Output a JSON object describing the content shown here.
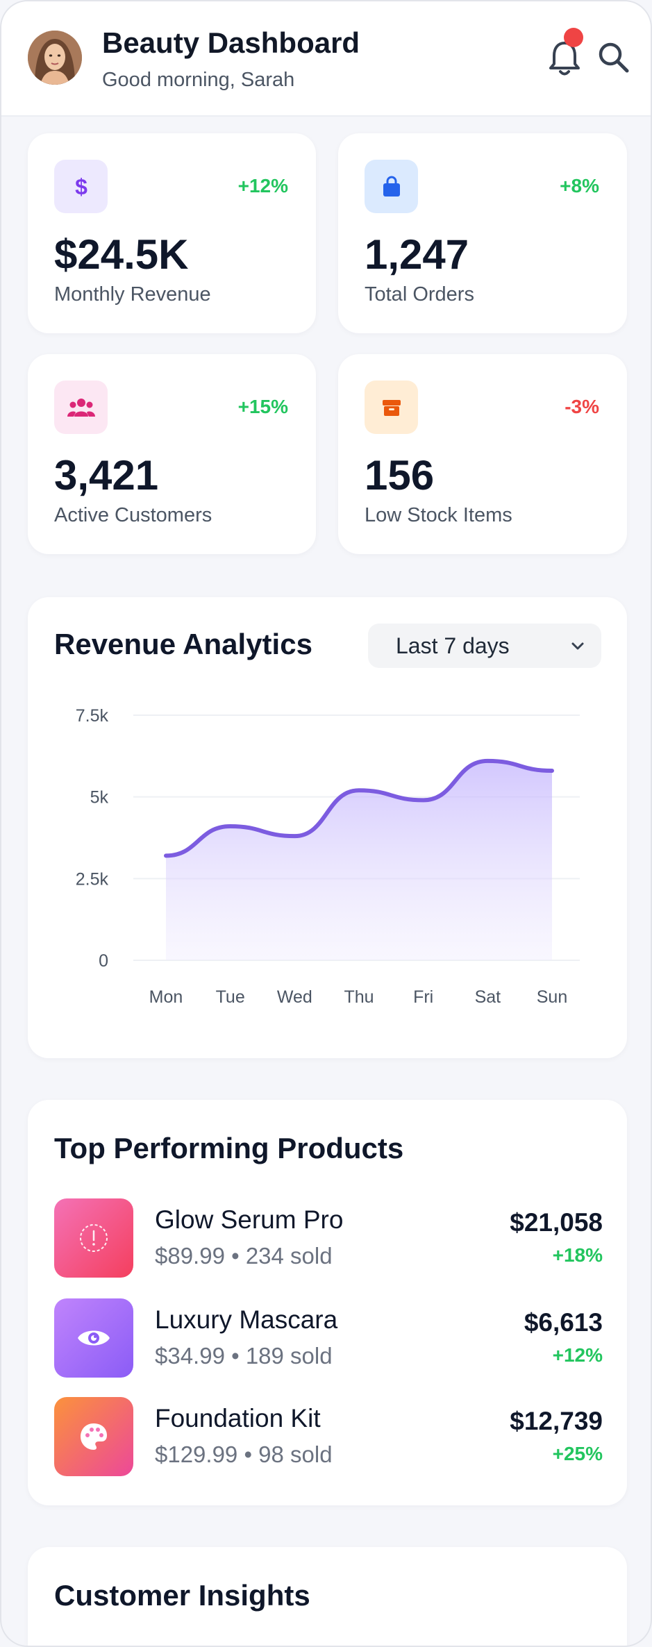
{
  "header": {
    "title": "Beauty Dashboard",
    "greeting": "Good morning, Sarah",
    "avatar_icon": "avatar-photo",
    "notification_icon": "bell-icon",
    "search_icon": "search-icon"
  },
  "stats": [
    {
      "icon": "dollar-icon",
      "change": "+12%",
      "value": "$24.5K",
      "label": "Monthly Revenue",
      "icon_bg": "#ede9fe",
      "icon_color": "#7c3aed",
      "change_color": "#22c55e"
    },
    {
      "icon": "shopping-bag-icon",
      "change": "+8%",
      "value": "1,247",
      "label": "Total Orders",
      "icon_bg": "#dbeafe",
      "icon_color": "#2563eb",
      "change_color": "#22c55e"
    },
    {
      "icon": "users-icon",
      "change": "+15%",
      "value": "3,421",
      "label": "Active Customers",
      "icon_bg": "#fce7f3",
      "icon_color": "#db2777",
      "change_color": "#22c55e"
    },
    {
      "icon": "box-icon",
      "change": "-3%",
      "value": "156",
      "label": "Low Stock Items",
      "icon_bg": "#ffedd5",
      "icon_color": "#ea580c",
      "change_color": "#ef4444"
    }
  ],
  "revenue": {
    "title": "Revenue Analytics",
    "range": "Last 7 days"
  },
  "chart_data": {
    "type": "area",
    "categories": [
      "Mon",
      "Tue",
      "Wed",
      "Thu",
      "Fri",
      "Sat",
      "Sun"
    ],
    "values": [
      3200,
      4100,
      3800,
      5200,
      4900,
      6100,
      5800
    ],
    "yticks": [
      "0",
      "2.5k",
      "5k",
      "7.5k"
    ],
    "ylim": [
      0,
      7500
    ],
    "grid": true,
    "line_color": "#7c5ce0",
    "fill_color": "#c4b5fd"
  },
  "products": {
    "title": "Top Performing Products",
    "items": [
      {
        "name": "Glow Serum Pro",
        "meta": "$89.99 • 234 sold",
        "revenue": "$21,058",
        "change": "+18%",
        "icon": "alert-circle-icon"
      },
      {
        "name": "Luxury Mascara",
        "meta": "$34.99 • 189 sold",
        "revenue": "$6,613",
        "change": "+12%",
        "icon": "eye-icon"
      },
      {
        "name": "Foundation Kit",
        "meta": "$129.99 • 98 sold",
        "revenue": "$12,739",
        "change": "+25%",
        "icon": "palette-icon"
      }
    ]
  },
  "insights": {
    "title": "Customer Insights"
  }
}
